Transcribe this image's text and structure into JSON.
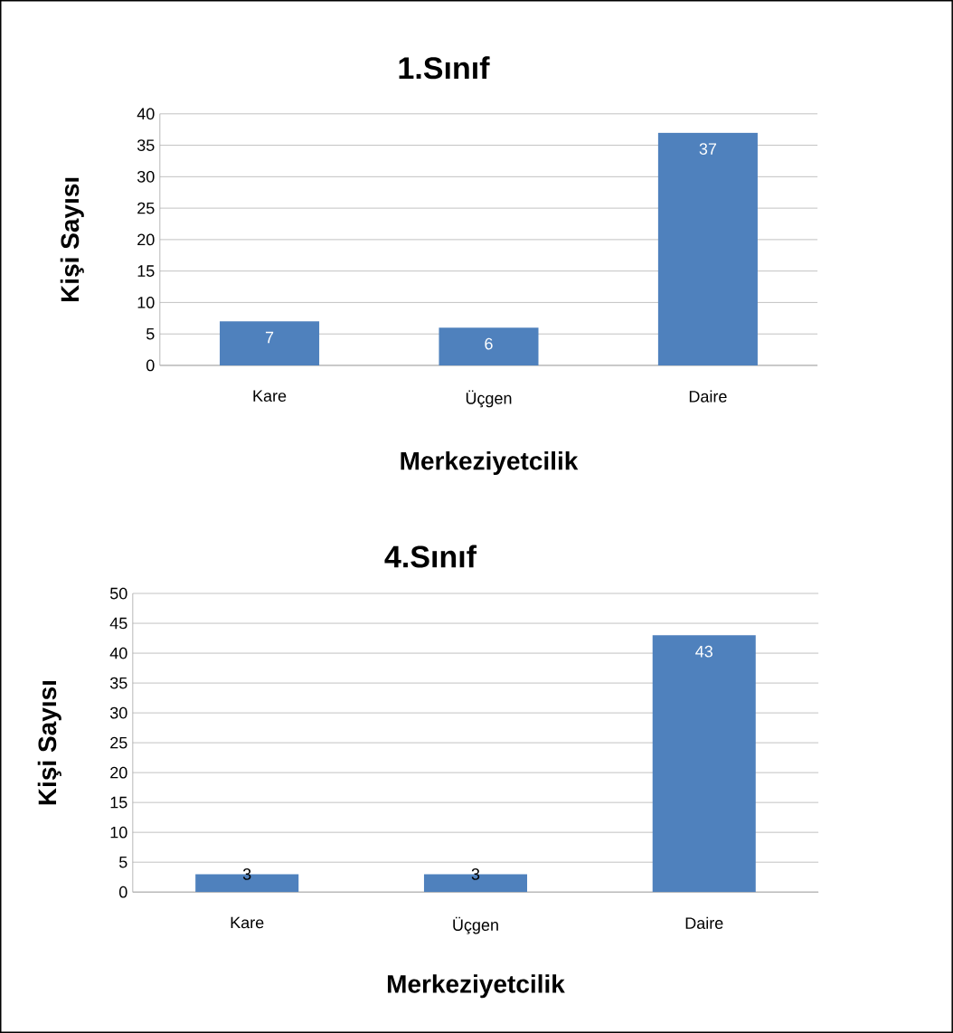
{
  "chart_data": [
    {
      "type": "bar",
      "title": "1.Sınıf",
      "xlabel": "Merkeziyetcilik",
      "ylabel": "Kişi Sayısı",
      "categories": [
        "Kare",
        "Üçgen",
        "Daire"
      ],
      "values": [
        7,
        6,
        37
      ],
      "color": "#4f81bd",
      "ylim": [
        0,
        40
      ],
      "yticks": [
        0,
        5,
        10,
        15,
        20,
        25,
        30,
        35,
        40
      ],
      "grid": "y",
      "data_labels": true
    },
    {
      "type": "bar",
      "title": "4.Sınıf",
      "xlabel": "Merkeziyetcilik",
      "ylabel": "Kişi Sayısı",
      "categories": [
        "Kare",
        "Üçgen",
        "Daire"
      ],
      "values": [
        3,
        3,
        43
      ],
      "color": "#4f81bd",
      "ylim": [
        0,
        50
      ],
      "yticks": [
        0,
        5,
        10,
        15,
        20,
        25,
        30,
        35,
        40,
        45,
        50
      ],
      "grid": "y",
      "data_labels": true
    }
  ]
}
